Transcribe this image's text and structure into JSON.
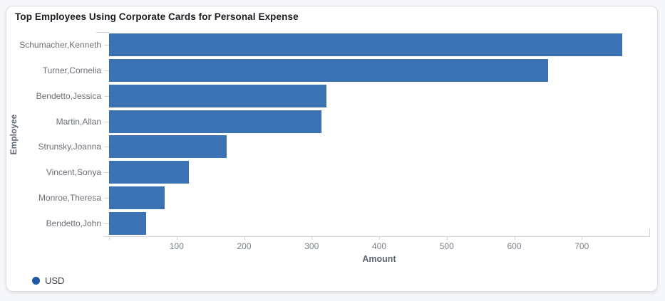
{
  "chart_data": {
    "type": "bar",
    "orientation": "horizontal",
    "title": "Top Employees Using Corporate Cards for Personal Expense",
    "xlabel": "Amount",
    "ylabel": "Employee",
    "categories": [
      "Schumacher,Kenneth",
      "Turner,Cornelia",
      "Bendetto,Jessica",
      "Martin,Allan",
      "Strunsky,Joanna",
      "Vincent,Sonya",
      "Monroe,Theresa",
      "Bendetto,John"
    ],
    "series": [
      {
        "name": "USD",
        "values": [
          760,
          650,
          322,
          315,
          174,
          118,
          82,
          55
        ]
      }
    ],
    "xlim": [
      0,
      800
    ],
    "xticks": [
      0,
      100,
      200,
      300,
      400,
      500,
      600,
      700
    ],
    "xtick_labels": [
      "",
      "100",
      "200",
      "300",
      "400",
      "500",
      "600",
      "700"
    ],
    "grid": false,
    "legend_position": "bottom-left",
    "bar_color": "#3b72b4",
    "legend_dot_color": "#1d57a6"
  }
}
